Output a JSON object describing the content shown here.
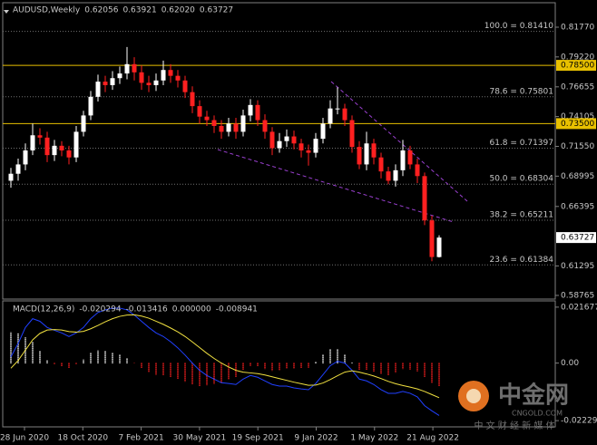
{
  "chart_data": [
    {
      "type": "candlestick",
      "title": "AUDUSD,Weekly",
      "header_values": [
        "0.62056",
        "0.63921",
        "0.62020",
        "0.63727"
      ],
      "ylim": [
        0.5845,
        0.8387
      ],
      "yticks": [
        {
          "value": 0.8177,
          "label": "0.81770"
        },
        {
          "value": 0.7922,
          "label": "0.79220"
        },
        {
          "value": 0.76655,
          "label": "0.76655"
        },
        {
          "value": 0.74105,
          "label": "0.74105"
        },
        {
          "value": 0.7155,
          "label": "0.71550"
        },
        {
          "value": 0.68995,
          "label": "0.68995"
        },
        {
          "value": 0.66395,
          "label": "0.66395"
        },
        {
          "value": 0.61295,
          "label": "0.61295"
        },
        {
          "value": 0.58765,
          "label": "0.58765"
        }
      ],
      "price_tag": {
        "value": 0.63727,
        "label": "0.63727"
      },
      "levels": [
        {
          "value": 0.785,
          "label": "0.78500"
        },
        {
          "value": 0.735,
          "label": "0.73500"
        }
      ],
      "level_color": "#e8c000",
      "fibo": [
        {
          "value": 0.8141,
          "label": "100.0 = 0.81410"
        },
        {
          "value": 0.75801,
          "label": "78.6 = 0.75801"
        },
        {
          "value": 0.71397,
          "label": "61.8 = 0.71397"
        },
        {
          "value": 0.68304,
          "label": "50.0 = 0.68304"
        },
        {
          "value": 0.65211,
          "label": "38.2 = 0.65211"
        },
        {
          "value": 0.61384,
          "label": "23.6 = 0.61384"
        }
      ],
      "up_color": "#ffffff",
      "down_color": "#ff2020",
      "open": [
        0.686,
        0.692,
        0.7,
        0.712,
        0.725,
        0.723,
        0.708,
        0.716,
        0.712,
        0.706,
        0.728,
        0.742,
        0.758,
        0.771,
        0.768,
        0.774,
        0.778,
        0.786,
        0.779,
        0.77,
        0.768,
        0.772,
        0.781,
        0.776,
        0.772,
        0.762,
        0.75,
        0.741,
        0.738,
        0.733,
        0.728,
        0.735,
        0.728,
        0.742,
        0.751,
        0.738,
        0.728,
        0.714,
        0.72,
        0.724,
        0.718,
        0.712,
        0.71,
        0.722,
        0.735,
        0.748,
        0.748,
        0.738,
        0.715,
        0.7,
        0.718,
        0.706,
        0.694,
        0.686,
        0.695,
        0.712,
        0.7,
        0.69,
        0.652,
        0.62056
      ],
      "high": [
        0.697,
        0.705,
        0.718,
        0.735,
        0.731,
        0.728,
        0.721,
        0.72,
        0.716,
        0.733,
        0.746,
        0.763,
        0.777,
        0.776,
        0.78,
        0.784,
        0.8007,
        0.792,
        0.785,
        0.776,
        0.778,
        0.789,
        0.786,
        0.781,
        0.776,
        0.767,
        0.755,
        0.746,
        0.742,
        0.738,
        0.74,
        0.74,
        0.747,
        0.756,
        0.755,
        0.743,
        0.732,
        0.727,
        0.73,
        0.729,
        0.722,
        0.717,
        0.727,
        0.74,
        0.755,
        0.7661,
        0.752,
        0.742,
        0.72,
        0.728,
        0.722,
        0.71,
        0.698,
        0.7,
        0.721,
        0.716,
        0.705,
        0.693,
        0.656,
        0.63921
      ],
      "low": [
        0.68,
        0.686,
        0.695,
        0.708,
        0.717,
        0.702,
        0.703,
        0.707,
        0.7,
        0.702,
        0.724,
        0.738,
        0.754,
        0.762,
        0.764,
        0.769,
        0.773,
        0.772,
        0.764,
        0.762,
        0.763,
        0.768,
        0.77,
        0.766,
        0.757,
        0.744,
        0.735,
        0.733,
        0.727,
        0.722,
        0.724,
        0.722,
        0.724,
        0.737,
        0.733,
        0.722,
        0.708,
        0.71,
        0.715,
        0.713,
        0.706,
        0.699,
        0.706,
        0.718,
        0.731,
        0.743,
        0.733,
        0.71,
        0.696,
        0.695,
        0.7,
        0.688,
        0.683,
        0.681,
        0.69,
        0.696,
        0.684,
        0.648,
        0.617,
        0.6202
      ],
      "close": [
        0.692,
        0.7,
        0.712,
        0.725,
        0.723,
        0.708,
        0.716,
        0.712,
        0.706,
        0.728,
        0.742,
        0.758,
        0.771,
        0.768,
        0.774,
        0.778,
        0.786,
        0.779,
        0.77,
        0.768,
        0.772,
        0.781,
        0.776,
        0.772,
        0.762,
        0.75,
        0.741,
        0.738,
        0.733,
        0.728,
        0.735,
        0.728,
        0.742,
        0.751,
        0.738,
        0.728,
        0.714,
        0.72,
        0.724,
        0.718,
        0.712,
        0.71,
        0.722,
        0.735,
        0.748,
        0.748,
        0.738,
        0.715,
        0.7,
        0.718,
        0.706,
        0.694,
        0.686,
        0.695,
        0.712,
        0.7,
        0.69,
        0.652,
        0.6206,
        0.63727
      ],
      "x_labels": [
        "28 Jun 2020",
        "18 Oct 2020",
        "7 Feb 2021",
        "30 May 2021",
        "19 Sep 2021",
        "9 Jan 2022",
        "1 May 2022",
        "21 Aug 2022"
      ]
    },
    {
      "type": "macd",
      "title": "MACD(12,26,9)",
      "header_values": [
        "-0.020294",
        "-0.013416",
        "0.000000",
        "-0.008941"
      ],
      "ylim": [
        -0.02436,
        0.02409
      ],
      "yticks": [
        0.021677,
        {
          "value": 0,
          "label": "0.00"
        },
        -0.022293
      ],
      "up_color": "#ffffff",
      "down_color": "#ff2020",
      "histogram": [
        0.012,
        0.0115,
        0.01,
        0.0082,
        0.0047,
        0.001,
        -0.0003,
        -0.0011,
        -0.0019,
        -0.0003,
        0.0015,
        0.0039,
        0.005,
        0.0046,
        0.0041,
        0.0032,
        0.002,
        -0.0001,
        -0.002,
        -0.0036,
        -0.0045,
        -0.0047,
        -0.0053,
        -0.0062,
        -0.0072,
        -0.0082,
        -0.0088,
        -0.0086,
        -0.008,
        -0.0076,
        -0.0064,
        -0.0055,
        -0.0027,
        -0.001,
        -0.0014,
        -0.0023,
        -0.003,
        -0.0029,
        -0.0022,
        -0.0022,
        -0.002,
        -0.0017,
        0.0006,
        0.0032,
        0.0054,
        0.0056,
        0.0035,
        0.0002,
        -0.0027,
        -0.0027,
        -0.0033,
        -0.0043,
        -0.0046,
        -0.0037,
        -0.0023,
        -0.0024,
        -0.0031,
        -0.0055,
        -0.0078,
        -0.008941
      ],
      "macd_line": {
        "color": "#2040ff",
        "values": [
          0.0024,
          0.0076,
          0.0138,
          0.0172,
          0.0162,
          0.0138,
          0.0127,
          0.0117,
          0.0103,
          0.0117,
          0.0138,
          0.0172,
          0.0196,
          0.0206,
          0.0213,
          0.0213,
          0.0206,
          0.0186,
          0.0162,
          0.0138,
          0.0117,
          0.0103,
          0.0083,
          0.0059,
          0.0031,
          0.0,
          -0.0028,
          -0.0048,
          -0.0062,
          -0.0076,
          -0.0079,
          -0.0083,
          -0.0062,
          -0.0048,
          -0.0055,
          -0.0069,
          -0.0083,
          -0.0089,
          -0.0089,
          -0.0096,
          -0.01,
          -0.0103,
          -0.0079,
          -0.0045,
          -0.001,
          0.0007,
          0.0,
          -0.0028,
          -0.0062,
          -0.0069,
          -0.0083,
          -0.0103,
          -0.0117,
          -0.0117,
          -0.011,
          -0.0117,
          -0.0131,
          -0.0165,
          -0.0185,
          -0.020294
        ]
      },
      "signal_line": {
        "color": "#f0e040",
        "values": [
          -0.002,
          0.001,
          0.005,
          0.009,
          0.0115,
          0.0128,
          0.013,
          0.0128,
          0.0122,
          0.012,
          0.0123,
          0.0133,
          0.0146,
          0.016,
          0.0172,
          0.0181,
          0.0186,
          0.0187,
          0.0182,
          0.0174,
          0.0162,
          0.015,
          0.0136,
          0.0121,
          0.0103,
          0.0082,
          0.006,
          0.0038,
          0.0018,
          0.0,
          -0.0015,
          -0.0028,
          -0.0035,
          -0.0038,
          -0.0041,
          -0.0046,
          -0.0053,
          -0.006,
          -0.0067,
          -0.0074,
          -0.008,
          -0.0086,
          -0.0085,
          -0.0077,
          -0.0064,
          -0.0049,
          -0.0035,
          -0.003,
          -0.0035,
          -0.0042,
          -0.005,
          -0.006,
          -0.0071,
          -0.008,
          -0.0087,
          -0.0093,
          -0.01,
          -0.011,
          -0.0122,
          -0.013416
        ]
      }
    }
  ],
  "watermark": {
    "brand": "中金网",
    "site": "CNGOLD.COM",
    "slogan": "中 文 财 经 新 媒 体"
  }
}
